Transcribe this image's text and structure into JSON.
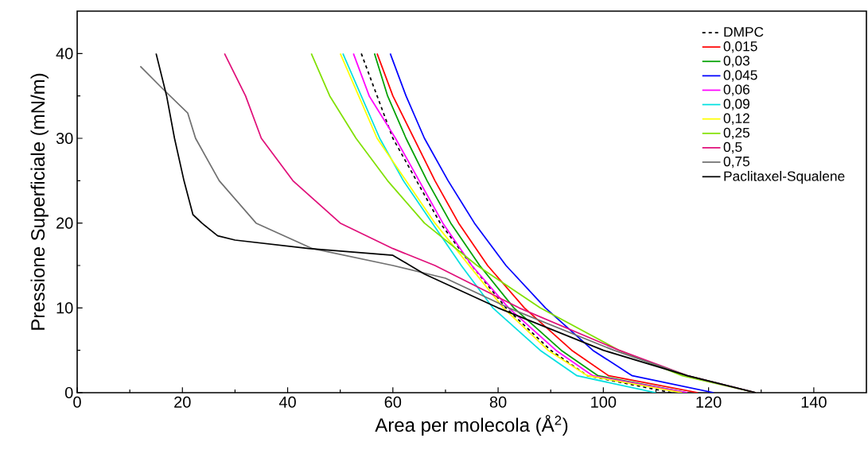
{
  "chart_data": {
    "type": "line",
    "xlabel": "Area per molecola (Å$^{2}$)",
    "ylabel": "Pressione Superficiale (mN/m)",
    "xlim": [
      0,
      150
    ],
    "ylim": [
      0,
      45
    ],
    "xticks": [
      0,
      20,
      40,
      60,
      80,
      100,
      120,
      140
    ],
    "yticks": [
      0,
      10,
      20,
      30,
      40
    ],
    "grid": false,
    "legend": "top right",
    "marker": "none",
    "series": [
      {
        "name": "DMPC",
        "color": "#000000",
        "line_style": "dashed",
        "x": [
          54,
          57,
          60,
          64.5,
          69,
          75,
          81.5,
          90,
          97,
          113
        ],
        "values": [
          40,
          35,
          30,
          25,
          20,
          15,
          10,
          5,
          2,
          0
        ]
      },
      {
        "name": "0,015",
        "color": "#ff0000",
        "x": [
          57,
          60,
          64,
          68,
          72.5,
          78,
          85,
          94,
          101,
          118
        ],
        "values": [
          40,
          35,
          30,
          25,
          20,
          15,
          10,
          5,
          2,
          0
        ]
      },
      {
        "name": "0,03",
        "color": "#00a000",
        "x": [
          56.5,
          59,
          62.5,
          66.5,
          71,
          76.5,
          83,
          92,
          99,
          116
        ],
        "values": [
          40,
          35,
          30,
          25,
          20,
          15,
          10,
          5,
          2,
          0
        ]
      },
      {
        "name": "0,045",
        "color": "#0000ff",
        "x": [
          59.5,
          62.5,
          66,
          70.5,
          75.5,
          81.5,
          89,
          98,
          105.5,
          121
        ],
        "values": [
          40,
          35,
          30,
          25,
          20,
          15,
          10,
          5,
          2,
          0
        ]
      },
      {
        "name": "0,06",
        "color": "#ff00ff",
        "x": [
          52.5,
          55.5,
          60.5,
          65,
          69.5,
          75,
          82,
          91,
          98,
          116
        ],
        "values": [
          40,
          35,
          30,
          25,
          20,
          15,
          10,
          5,
          2,
          0
        ]
      },
      {
        "name": "0,09",
        "color": "#00e0e0",
        "x": [
          50.5,
          54,
          57.5,
          62,
          67.5,
          73,
          79,
          88,
          95,
          110
        ],
        "values": [
          40,
          35,
          30,
          25,
          20,
          15,
          10,
          5,
          2,
          0
        ]
      },
      {
        "name": "0,12",
        "color": "#ffff00",
        "x": [
          50,
          53.5,
          57,
          62.5,
          68,
          74.5,
          81,
          89.5,
          97,
          115
        ],
        "values": [
          40,
          35,
          30,
          25,
          20,
          15,
          10,
          5,
          2,
          0
        ]
      },
      {
        "name": "0,25",
        "color": "#80e000",
        "x": [
          44.5,
          48,
          53,
          59,
          66,
          76,
          88,
          103,
          115,
          129
        ],
        "values": [
          40,
          35,
          30,
          25,
          20,
          15,
          10,
          5,
          2,
          0
        ]
      },
      {
        "name": "0,5",
        "color": "#e0107a",
        "x": [
          28,
          32,
          35,
          41,
          50,
          60,
          68,
          84,
          103,
          116,
          129
        ],
        "values": [
          40,
          35,
          30,
          25,
          20,
          17,
          15,
          10,
          5,
          2,
          0
        ]
      },
      {
        "name": "0,75",
        "color": "#707070",
        "x": [
          12,
          16,
          21,
          22.5,
          27,
          34,
          44.7,
          60,
          70,
          82,
          102,
          116,
          129
        ],
        "values": [
          38.5,
          36,
          33,
          30,
          25,
          20,
          17,
          15,
          13.5,
          10,
          5,
          2,
          0
        ]
      },
      {
        "name": "Paclitaxel-Squalene",
        "color": "#000000",
        "x": [
          15,
          17,
          18.5,
          20.3,
          22,
          23.7,
          26.7,
          30,
          44,
          60,
          66,
          80,
          100,
          116,
          129
        ],
        "values": [
          40,
          35,
          30,
          25,
          21,
          20,
          18.5,
          18,
          17,
          16.2,
          14,
          10,
          5,
          2,
          0
        ]
      }
    ]
  }
}
